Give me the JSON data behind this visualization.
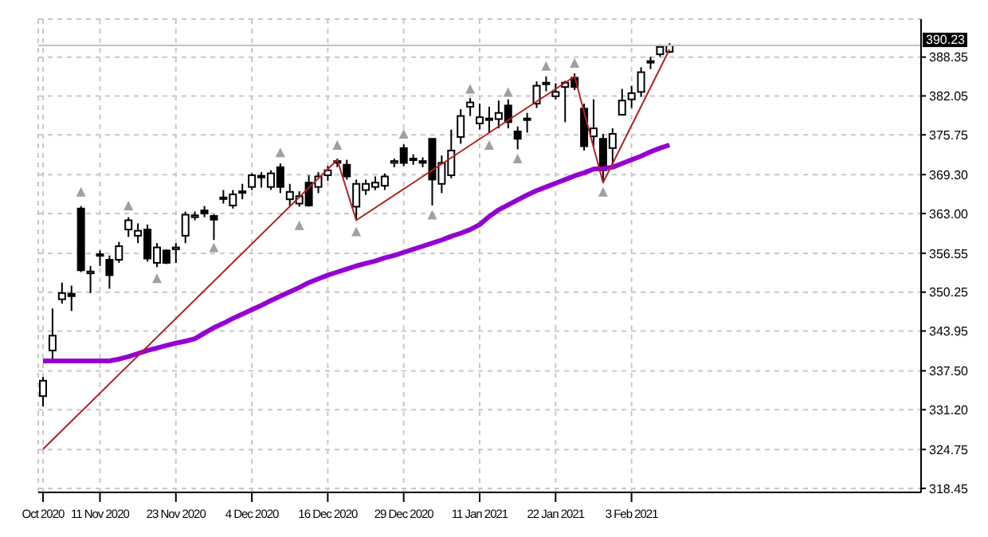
{
  "chart_data": {
    "type": "candlestick",
    "categories": [
      "Oct 2020",
      null,
      null,
      null,
      null,
      null,
      "11 Nov 2020",
      null,
      null,
      null,
      null,
      null,
      null,
      null,
      "23 Nov 2020",
      null,
      null,
      null,
      null,
      null,
      null,
      null,
      "4 Dec 2020",
      null,
      null,
      null,
      null,
      null,
      null,
      null,
      "16 Dec 2020",
      null,
      null,
      null,
      null,
      null,
      null,
      null,
      "29 Dec 2020",
      null,
      null,
      null,
      null,
      null,
      null,
      null,
      "11 Jan 2021",
      null,
      null,
      null,
      null,
      null,
      null,
      null,
      "22 Jan 2021",
      null,
      null,
      null,
      null,
      null,
      null,
      null,
      "3 Feb 2021",
      null,
      null,
      null,
      null
    ],
    "color": "#000000",
    "ohlc": [
      [
        333.4,
        336.5,
        331.7,
        335.9
      ],
      [
        340.8,
        347.6,
        339.1,
        343.2
      ],
      [
        349.1,
        351.8,
        348.4,
        350.1
      ],
      [
        350.0,
        351.3,
        347.2,
        349.6
      ],
      [
        363.8,
        364.2,
        353.5,
        353.8
      ],
      [
        353.3,
        354.5,
        350.1,
        353.6
      ],
      [
        356.2,
        357.0,
        354.5,
        356.4
      ],
      [
        355.5,
        356.2,
        350.8,
        353.0
      ],
      [
        355.5,
        358.4,
        355.0,
        357.7
      ],
      [
        360.4,
        362.4,
        359.2,
        361.9
      ],
      [
        359.4,
        361.4,
        358.2,
        360.2
      ],
      [
        360.4,
        361.2,
        355.2,
        355.7
      ],
      [
        355.0,
        358.2,
        354.3,
        357.5
      ],
      [
        357.0,
        357.2,
        354.8,
        355.0
      ],
      [
        357.2,
        358.2,
        355.0,
        357.5
      ],
      [
        359.4,
        363.3,
        358.2,
        362.8
      ],
      [
        362.4,
        363.3,
        361.9,
        362.7
      ],
      [
        363.5,
        364.2,
        362.4,
        363.0
      ],
      [
        362.6,
        362.9,
        358.7,
        362.0
      ],
      [
        365.4,
        366.8,
        364.6,
        365.6
      ],
      [
        364.3,
        366.8,
        363.8,
        366.1
      ],
      [
        366.4,
        367.8,
        365.3,
        366.6
      ],
      [
        367.3,
        369.5,
        366.8,
        369.2
      ],
      [
        368.9,
        369.7,
        367.2,
        369.1
      ],
      [
        367.3,
        370.0,
        366.8,
        369.5
      ],
      [
        370.5,
        371.1,
        366.3,
        367.3
      ],
      [
        365.3,
        367.8,
        364.1,
        366.5
      ],
      [
        364.6,
        366.6,
        364.1,
        365.8
      ],
      [
        368.0,
        369.2,
        364.1,
        364.3
      ],
      [
        367.3,
        369.7,
        366.3,
        369.0
      ],
      [
        369.2,
        370.7,
        368.3,
        370.0
      ],
      [
        371.5,
        371.9,
        370.5,
        371.2
      ],
      [
        370.9,
        371.7,
        368.5,
        369.0
      ],
      [
        364.1,
        368.5,
        361.9,
        367.8
      ],
      [
        366.8,
        368.5,
        366.0,
        367.8
      ],
      [
        367.3,
        369.0,
        366.8,
        368.0
      ],
      [
        367.5,
        369.5,
        366.8,
        369.0
      ],
      [
        371.2,
        371.9,
        370.5,
        371.5
      ],
      [
        373.6,
        374.2,
        370.7,
        371.2
      ],
      [
        371.7,
        372.6,
        370.9,
        371.9
      ],
      [
        371.5,
        372.1,
        370.5,
        371.2
      ],
      [
        375.1,
        375.1,
        364.3,
        368.5
      ],
      [
        367.8,
        372.4,
        366.3,
        371.2
      ],
      [
        369.2,
        376.6,
        368.7,
        373.2
      ],
      [
        375.4,
        379.9,
        374.3,
        378.8
      ],
      [
        380.3,
        381.7,
        378.8,
        381.0
      ],
      [
        377.6,
        380.8,
        376.6,
        378.6
      ],
      [
        378.4,
        380.3,
        376.1,
        378.3
      ],
      [
        378.3,
        381.3,
        376.8,
        379.3
      ],
      [
        380.5,
        381.5,
        376.8,
        377.8
      ],
      [
        376.3,
        377.1,
        373.4,
        375.1
      ],
      [
        378.2,
        379.3,
        376.1,
        378.4
      ],
      [
        380.8,
        384.4,
        380.1,
        383.7
      ],
      [
        384.1,
        385.2,
        382.8,
        384.2
      ],
      [
        382.0,
        384.1,
        381.5,
        382.7
      ],
      [
        383.5,
        384.5,
        377.8,
        384.2
      ],
      [
        385.0,
        385.7,
        383.0,
        383.5
      ],
      [
        380.0,
        380.8,
        373.2,
        373.9
      ],
      [
        375.5,
        381.5,
        373.9,
        376.8
      ],
      [
        375.1,
        375.9,
        368.0,
        370.0
      ],
      [
        373.6,
        376.8,
        370.9,
        375.9
      ],
      [
        379.0,
        383.2,
        379.0,
        381.3
      ],
      [
        381.5,
        383.7,
        380.1,
        382.5
      ],
      [
        382.7,
        386.7,
        381.9,
        385.9
      ],
      [
        387.7,
        388.4,
        386.4,
        387.5
      ],
      [
        388.8,
        390.4,
        388.4,
        390.0
      ],
      [
        389.2,
        390.6,
        389.0,
        390.23
      ]
    ],
    "series": [
      {
        "type": "line",
        "color": "#9400d3",
        "values": [
          339.1,
          339.1,
          339.1,
          339.1,
          339.1,
          339.1,
          339.1,
          339.1,
          339.4,
          339.8,
          340.3,
          340.8,
          341.2,
          341.6,
          342.0,
          342.3,
          342.7,
          343.6,
          344.5,
          345.2,
          346.0,
          346.7,
          347.4,
          348.1,
          348.9,
          349.6,
          350.3,
          351.0,
          351.8,
          352.4,
          353.0,
          353.5,
          354.0,
          354.5,
          354.9,
          355.3,
          355.8,
          356.2,
          356.7,
          357.2,
          357.7,
          358.2,
          358.7,
          359.3,
          359.8,
          360.4,
          361.2,
          362.5,
          363.6,
          364.4,
          365.2,
          366.0,
          366.7,
          367.3,
          367.9,
          368.5,
          369.1,
          369.6,
          370.2,
          370.3,
          370.5,
          371.1,
          371.7,
          372.3,
          373.0,
          373.6,
          374.1
        ]
      },
      {
        "type": "line",
        "color": "#b22222",
        "values": [
          324.8,
          null,
          null,
          null,
          null,
          null,
          null,
          null,
          null,
          null,
          null,
          null,
          null,
          null,
          null,
          null,
          null,
          null,
          null,
          null,
          null,
          null,
          null,
          null,
          null,
          null,
          null,
          null,
          null,
          null,
          null,
          371.7,
          null,
          361.9,
          null,
          null,
          null,
          null,
          null,
          null,
          null,
          null,
          null,
          null,
          null,
          null,
          null,
          null,
          null,
          null,
          null,
          null,
          null,
          null,
          null,
          null,
          385.2,
          null,
          null,
          368.0,
          null,
          null,
          null,
          null,
          null,
          null,
          389.6
        ]
      },
      {
        "type": "scatter",
        "color": "#a0a0a0",
        "marker": "triangle",
        "values": [
          null,
          null,
          null,
          null,
          366.5,
          null,
          null,
          null,
          null,
          364.3,
          null,
          null,
          null,
          null,
          null,
          null,
          null,
          null,
          null,
          null,
          null,
          null,
          null,
          null,
          null,
          372.9,
          null,
          null,
          null,
          null,
          null,
          374.1,
          null,
          null,
          null,
          null,
          null,
          null,
          375.9,
          null,
          null,
          null,
          null,
          null,
          null,
          383.2,
          null,
          null,
          null,
          382.7,
          null,
          null,
          null,
          386.9,
          null,
          null,
          387.4,
          null,
          null,
          null,
          null,
          null,
          null,
          null,
          null,
          null,
          null
        ]
      },
      {
        "type": "scatter",
        "color": "#a0a0a0",
        "marker": "triangle",
        "values": [
          null,
          null,
          null,
          null,
          null,
          null,
          null,
          null,
          null,
          null,
          null,
          null,
          352.5,
          null,
          null,
          null,
          null,
          null,
          357.5,
          null,
          null,
          null,
          null,
          null,
          null,
          null,
          null,
          361.1,
          null,
          null,
          null,
          null,
          null,
          360.1,
          null,
          null,
          null,
          null,
          null,
          null,
          null,
          362.8,
          null,
          null,
          null,
          null,
          null,
          374.1,
          null,
          null,
          371.9,
          null,
          null,
          null,
          null,
          null,
          null,
          null,
          null,
          366.5,
          null,
          null,
          null,
          null,
          null,
          null,
          null
        ]
      }
    ],
    "ylim": [
      317.8,
      394.5
    ],
    "yticks": [
      318.45,
      324.75,
      {
        "value": 331.2,
        "label": "331.20"
      },
      {
        "value": 337.5,
        "label": "337.50"
      },
      343.95,
      350.25,
      356.55,
      {
        "value": 363.0,
        "label": "363.00"
      },
      {
        "value": 369.3,
        "label": "369.30"
      },
      375.75,
      382.05,
      388.35
    ],
    "grid": true,
    "ref_lines": [
      {
        "axis": "y",
        "value": 390.23,
        "label": "390.23",
        "color": "#c0c0c0"
      }
    ]
  }
}
